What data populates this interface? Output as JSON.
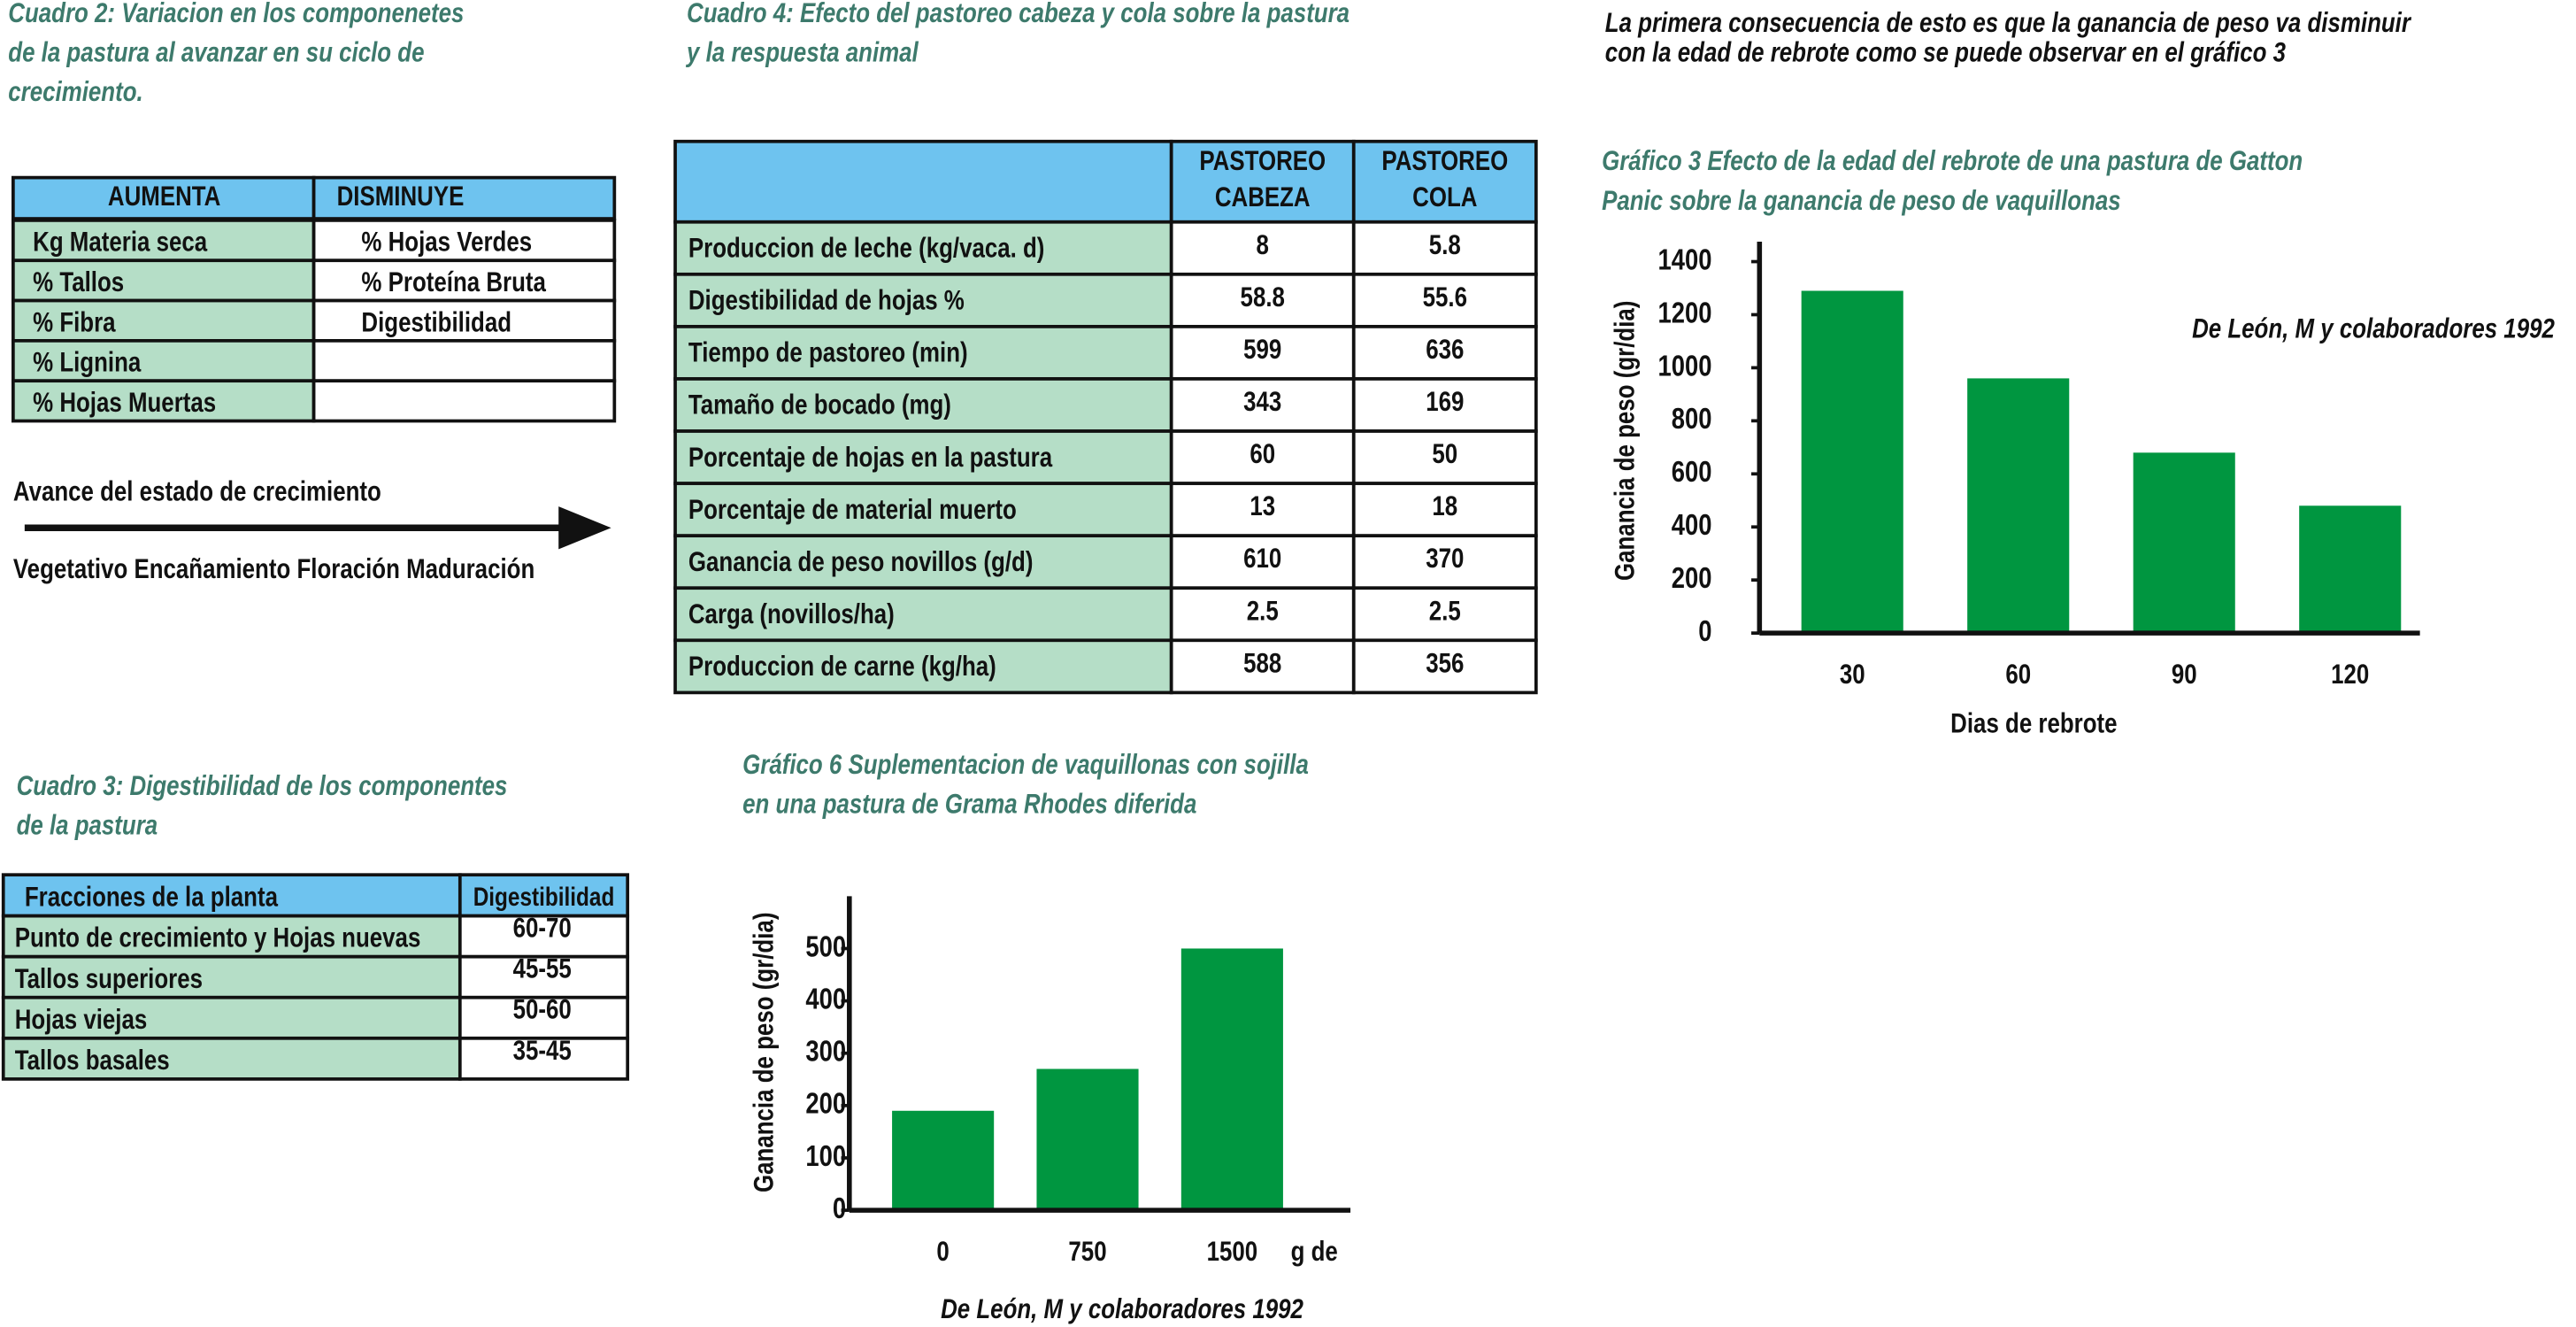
{
  "cuadro2": {
    "title": [
      "Cuadro 2: Variacion en los componenetes",
      "de la pastura al avanzar en su ciclo de",
      "crecimiento."
    ],
    "header": [
      "AUMENTA",
      "DISMINUYE"
    ],
    "rows": [
      [
        "Kg Materia seca",
        "% Hojas Verdes"
      ],
      [
        "% Tallos",
        "% Proteína Bruta"
      ],
      [
        "% Fibra",
        "Digestibilidad"
      ],
      [
        "% Lignina"
      ],
      [
        "% Hojas Muertas"
      ]
    ]
  },
  "growth": {
    "label": "Avance del estado de crecimiento",
    "stages": "Vegetativo Encañamiento Floración Maduración"
  },
  "cuadro3": {
    "title": [
      "Cuadro 3: Digestibilidad de los componentes",
      "de la pastura"
    ],
    "header": [
      "Fracciones de la planta",
      "Digestibilidad"
    ],
    "rows": [
      [
        "Punto de crecimiento y Hojas nuevas",
        "60-70"
      ],
      [
        "Tallos superiores",
        "45-55"
      ],
      [
        "Hojas viejas",
        "50-60"
      ],
      [
        "Tallos basales",
        "35-45"
      ]
    ]
  },
  "cuadro4": {
    "title": [
      "Cuadro 4: Efecto del pastoreo cabeza y cola sobre la pastura",
      "y la respuesta animal"
    ],
    "header": [
      [
        "PASTOREO",
        "CABEZA"
      ],
      [
        "PASTOREO",
        "COLA"
      ]
    ],
    "rows": [
      [
        "Produccion de leche (kg/vaca. d)",
        8,
        5.8
      ],
      [
        "Digestibilidad de hojas %",
        58.8,
        55.6
      ],
      [
        "Tiempo de pastoreo (min)",
        599,
        636
      ],
      [
        "Tamaño de bocado (mg)",
        343,
        169
      ],
      [
        "Porcentaje de hojas en la pastura",
        60,
        50
      ],
      [
        "Porcentaje de material muerto",
        13,
        18
      ],
      [
        "Ganancia de peso novillos (g/d)",
        610,
        370
      ],
      [
        "Carga (novillos/ha)",
        2.5,
        2.5
      ],
      [
        "Produccion de carne (kg/ha)",
        588,
        356
      ]
    ]
  },
  "intro": [
    "La primera consecuencia de esto es que la ganancia de peso va disminuir",
    "con la edad de rebrote como se puede observar en el gráfico 3"
  ],
  "chart_data": [
    {
      "type": "bar",
      "title": [
        "Gráfico 3 Efecto de la edad del rebrote de una pastura de Gatton",
        "Panic sobre la ganancia de peso de vaquillonas"
      ],
      "annotation": "De León, M y colaboradores 1992",
      "ylabel": "Ganancia de peso (gr/dia)",
      "xlabel": "Dias de rebrote",
      "categories": [
        "30",
        "60",
        "90",
        "120"
      ],
      "values": [
        1290,
        960,
        680,
        480
      ],
      "color": "#009640",
      "ylim": [
        0,
        1475
      ],
      "yticks": [
        0,
        200,
        400,
        600,
        800,
        1000,
        1200,
        1400
      ]
    },
    {
      "type": "bar",
      "title": [
        "Gráfico 6 Suplementacion de vaquillonas con sojilla",
        "en una pastura de Grama Rhodes diferida"
      ],
      "annotation": "De León, M y colaboradores 1992",
      "ylabel": "Ganancia de peso (gr/dia)",
      "x_unit": "g de",
      "categories": [
        "0",
        "750",
        "1500"
      ],
      "values": [
        190,
        270,
        500
      ],
      "color": "#009640",
      "ylim": [
        0,
        600
      ],
      "yticks": [
        0,
        100,
        200,
        300,
        400,
        500
      ]
    }
  ]
}
